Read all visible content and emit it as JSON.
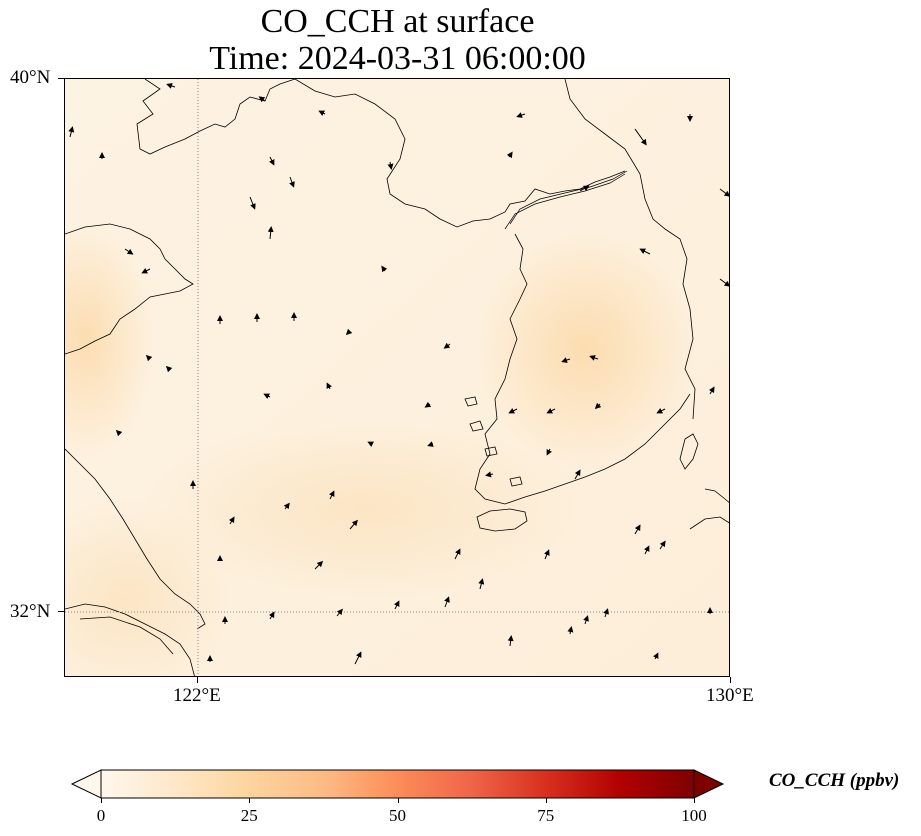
{
  "title": {
    "line1": "CO_CCH at surface",
    "line2": "Time: 2024-03-31 06:00:00"
  },
  "map": {
    "lon_range": [
      119,
      130
    ],
    "lat_range": [
      31,
      40
    ],
    "lat_ticks": [
      {
        "value": 40,
        "label": "40°N"
      },
      {
        "value": 32,
        "label": "32°N"
      }
    ],
    "lon_ticks": [
      {
        "value": 122,
        "label": "122°E"
      },
      {
        "value": 130,
        "label": "130°E"
      }
    ],
    "gridlines": {
      "lons": [
        122
      ],
      "lats": [
        32
      ],
      "style": "dotted",
      "color": "#888888"
    },
    "background_color": "#fef4e6",
    "coastline_color": "#000000",
    "wind_vectors": true
  },
  "colorbar": {
    "label": "CO_CCH (ppbv)",
    "min": 0,
    "max": 100,
    "extend": "both",
    "colormap": "OrRd",
    "colors": [
      "#fff7ec",
      "#fee8c8",
      "#fdd49e",
      "#fdbb84",
      "#fc8d59",
      "#ef6548",
      "#d7301f",
      "#b30000",
      "#7f0000"
    ],
    "ticks": [
      {
        "value": 0,
        "label": "0"
      },
      {
        "value": 25,
        "label": "25"
      },
      {
        "value": 50,
        "label": "50"
      },
      {
        "value": 75,
        "label": "75"
      },
      {
        "value": 100,
        "label": "100"
      }
    ]
  }
}
